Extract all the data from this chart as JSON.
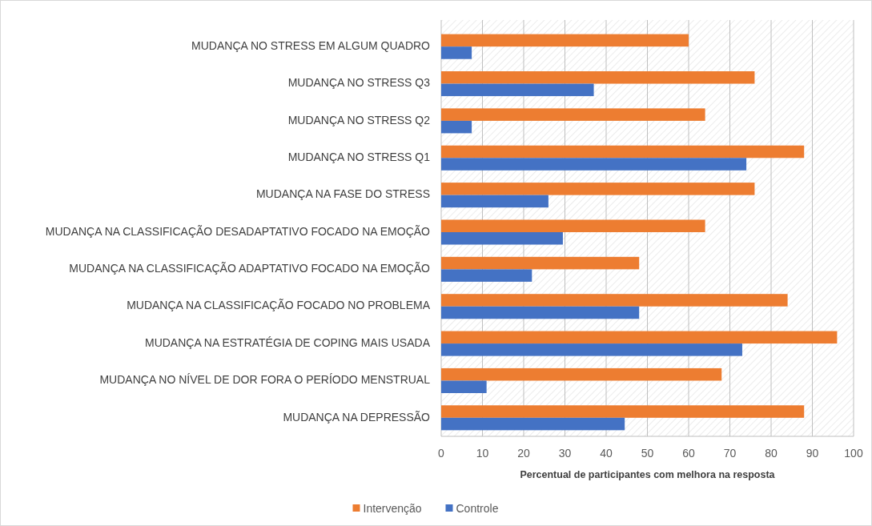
{
  "chart_data": {
    "type": "bar",
    "orientation": "horizontal",
    "xlabel": "Percentual de participantes com melhora na resposta",
    "categories": [
      "MUDANÇA NO STRESS EM ALGUM QUADRO",
      "MUDANÇA NO STRESS Q3",
      "MUDANÇA NO STRESS Q2",
      "MUDANÇA NO STRESS Q1",
      "MUDANÇA NA FASE DO STRESS",
      "MUDANÇA NA CLASSIFICAÇÃO DESADAPTATIVO FOCADO NA EMOÇÃO",
      "MUDANÇA NA CLASSIFICAÇÃO ADAPTATIVO FOCADO NA EMOÇÃO",
      "MUDANÇA NA CLASSIFICAÇÃO FOCADO NO PROBLEMA",
      "MUDANÇA NA ESTRATÉGIA DE COPING MAIS USADA",
      "MUDANÇA NO NÍVEL DE DOR FORA O PERÍODO MENSTRUAL",
      "MUDANÇA NA DEPRESSÃO"
    ],
    "series": [
      {
        "name": "Intervenção",
        "color": "#ed7d31",
        "values": [
          60,
          76,
          64,
          88,
          76,
          64,
          48,
          84,
          96,
          68,
          88
        ]
      },
      {
        "name": "Controle",
        "color": "#4472c4",
        "values": [
          7.4,
          37,
          7.4,
          74,
          26,
          29.5,
          22,
          48,
          73,
          11,
          44.5
        ]
      }
    ],
    "xlim": [
      0,
      100
    ],
    "xticks": [
      0,
      10,
      20,
      30,
      40,
      50,
      60,
      70,
      80,
      90,
      100
    ],
    "grid": "x",
    "legend": "bottom"
  }
}
